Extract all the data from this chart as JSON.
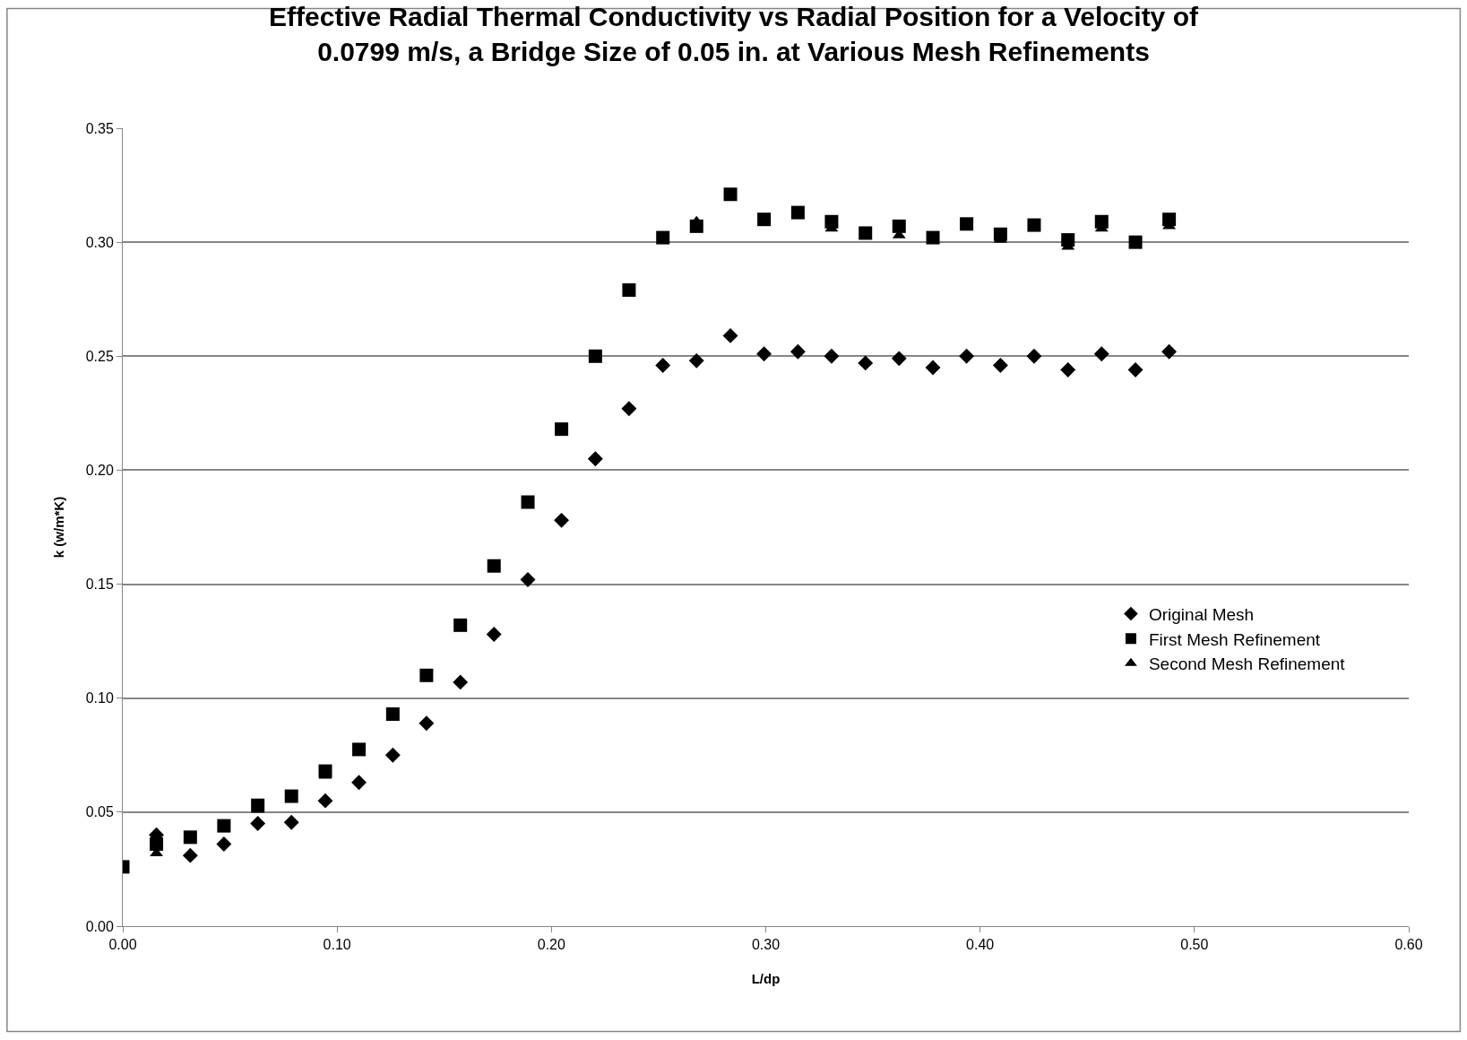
{
  "chart_data": {
    "type": "scatter",
    "title": "Effective Radial Thermal Conductivity vs Radial Position for a Velocity of\n0.0799 m/s, a Bridge Size of 0.05 in. at Various Mesh Refinements",
    "xlabel": "L/dp",
    "ylabel": "k (w/m*K)",
    "x": [
      0.0,
      0.0157,
      0.0315,
      0.0472,
      0.063,
      0.0787,
      0.0945,
      0.1102,
      0.126,
      0.1417,
      0.1575,
      0.1732,
      0.189,
      0.2047,
      0.2205,
      0.2362,
      0.252,
      0.2677,
      0.2835,
      0.2992,
      0.315,
      0.3307,
      0.3465,
      0.3622,
      0.378,
      0.3937,
      0.4095,
      0.4252,
      0.441,
      0.4567,
      0.4725,
      0.4882
    ],
    "series": [
      {
        "name": "Original Mesh",
        "color": "#000000",
        "marker": "diamond",
        "values": [
          null,
          0.04,
          0.031,
          0.036,
          0.045,
          0.0455,
          0.055,
          0.063,
          0.075,
          0.089,
          0.107,
          0.128,
          0.152,
          0.178,
          0.205,
          0.227,
          0.246,
          0.248,
          0.259,
          0.251,
          0.252,
          0.25,
          0.247,
          0.249,
          0.245,
          0.25,
          0.246,
          0.25,
          0.244,
          0.251,
          0.244,
          0.252
        ]
      },
      {
        "name": "First Mesh Refinement",
        "color": "#000000",
        "marker": "square",
        "values": [
          0.026,
          0.036,
          0.039,
          0.044,
          0.053,
          0.057,
          0.068,
          0.0775,
          0.093,
          0.11,
          0.132,
          0.158,
          0.186,
          0.218,
          0.25,
          0.279,
          0.302,
          0.307,
          0.321,
          0.31,
          0.313,
          0.309,
          0.304,
          0.307,
          0.302,
          0.308,
          0.3035,
          0.3075,
          0.301,
          0.309,
          0.3,
          0.31
        ]
      },
      {
        "name": "Second Mesh Refinement",
        "color": "#000000",
        "marker": "triangle",
        "values": [
          null,
          0.032,
          null,
          null,
          0.051,
          null,
          0.066,
          null,
          null,
          null,
          null,
          null,
          null,
          null,
          null,
          null,
          null,
          0.309,
          null,
          null,
          null,
          0.306,
          null,
          0.303,
          null,
          null,
          0.301,
          null,
          0.298,
          0.306,
          null,
          0.307
        ]
      }
    ],
    "xlim": [
      0,
      0.6
    ],
    "xticks": [
      {
        "value": 0,
        "label": "0.00"
      },
      {
        "value": 0.1,
        "label": "0.10"
      },
      {
        "value": 0.2,
        "label": "0.20"
      },
      {
        "value": 0.3,
        "label": "0.30"
      },
      {
        "value": 0.4,
        "label": "0.40"
      },
      {
        "value": 0.5,
        "label": "0.50"
      },
      {
        "value": 0.6,
        "label": "0.60"
      }
    ],
    "ylim": [
      0,
      0.35
    ],
    "yticks": [
      {
        "value": 0,
        "label": "0.00"
      },
      {
        "value": 0.05,
        "label": "0.05"
      },
      {
        "value": 0.1,
        "label": "0.10"
      },
      {
        "value": 0.15,
        "label": "0.15"
      },
      {
        "value": 0.2,
        "label": "0.20"
      },
      {
        "value": 0.25,
        "label": "0.25"
      },
      {
        "value": 0.3,
        "label": "0.30"
      },
      {
        "value": 0.35,
        "label": "0.35"
      }
    ],
    "grid": "y",
    "legend": "right"
  }
}
